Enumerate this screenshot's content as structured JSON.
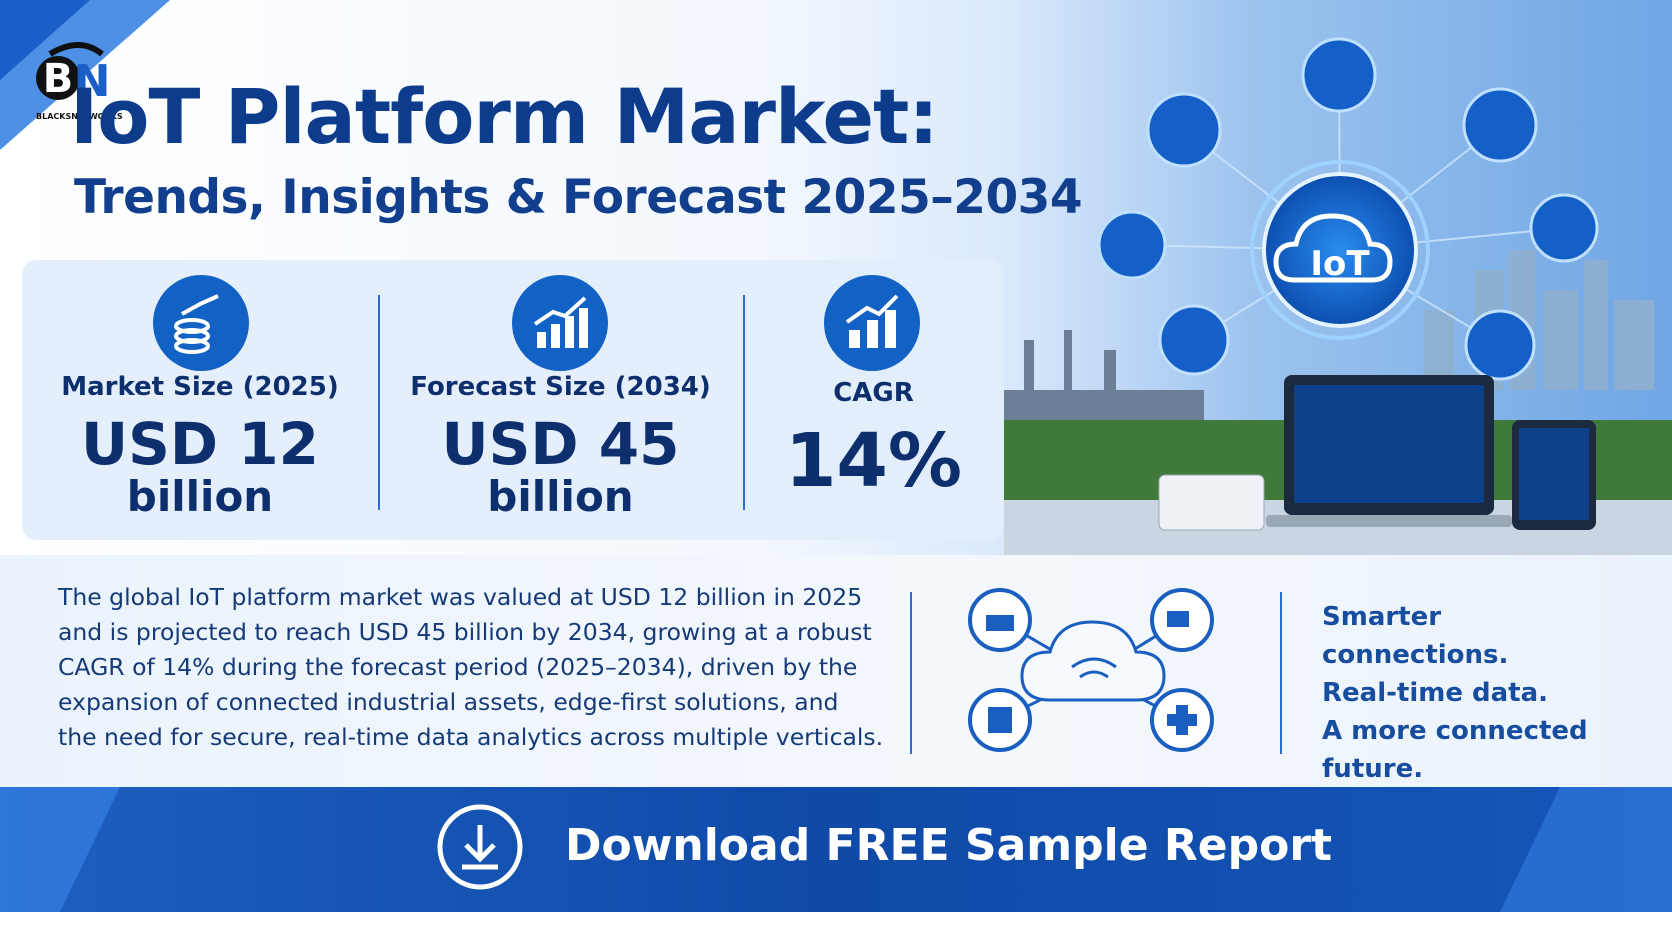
{
  "logo": {
    "brand": "BLACKSNETWORKS"
  },
  "header": {
    "title": "IoT Platform Market:",
    "subtitle": "Trends, Insights & Forecast 2025–2034"
  },
  "stats": [
    {
      "label": "Market Size (2025)",
      "value": "USD 12",
      "unit": "billion"
    },
    {
      "label": "Forecast Size (2034)",
      "value": "USD 45",
      "unit": "billion"
    },
    {
      "label": "CAGR",
      "value": "14%"
    }
  ],
  "hero": {
    "hub_label": "IoT"
  },
  "description": [
    "The global IoT platform market was valued at USD 12 billion in 2025",
    "and is projected to reach USD 45 billion by 2034, growing at a robust",
    "CAGR of 14% during the forecast period (2025–2034), driven by the",
    "expansion of connected industrial assets, edge-first solutions, and",
    "the need for secure, real-time data analytics across multiple verticals."
  ],
  "tagline": [
    "Smarter connections.",
    "Real-time data.",
    "A more connected future."
  ],
  "cta": {
    "label": "Download FREE Sample Report"
  }
}
